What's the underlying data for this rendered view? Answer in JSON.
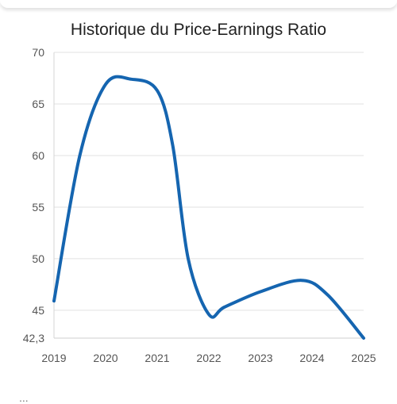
{
  "chart_data": {
    "type": "line",
    "title": "Historique du Price-Earnings Ratio",
    "xlabel": "",
    "ylabel": "",
    "x_ticks": [
      "2019",
      "2020",
      "2021",
      "2022",
      "2023",
      "2024",
      "2025"
    ],
    "y_ticks": [
      "70",
      "65",
      "60",
      "55",
      "50",
      "45",
      "42,3"
    ],
    "y_tick_values": [
      70,
      65,
      60,
      55,
      50,
      45,
      42.3
    ],
    "xlim": [
      2019,
      2025
    ],
    "ylim": [
      42.3,
      70
    ],
    "grid": true,
    "line_color": "#1565b0",
    "series": [
      {
        "x": [
          2019,
          2019.5,
          2020,
          2020.5,
          2021,
          2021.3,
          2021.6,
          2022,
          2022.3,
          2023,
          2023.8,
          2024.3,
          2025
        ],
        "values": [
          45.9,
          60.0,
          66.9,
          67.4,
          66.3,
          61.0,
          50.0,
          44.6,
          45.3,
          46.8,
          47.9,
          46.5,
          42.3
        ]
      }
    ]
  },
  "footer": {
    "partial_text": "..."
  }
}
